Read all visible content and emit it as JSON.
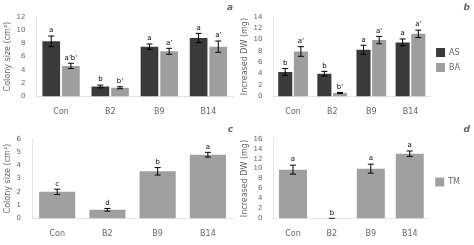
{
  "chart_data": [
    {
      "type": "bar",
      "title": "a",
      "categories": [
        "Con",
        "B2",
        "B9",
        "B14"
      ],
      "series": [
        {
          "color": "#3a3a3a",
          "values": [
            8.3,
            1.5,
            7.5,
            8.8
          ],
          "errors": [
            0.8,
            0.2,
            0.4,
            0.7
          ],
          "annotations": [
            "a",
            "b",
            "a",
            "a"
          ]
        },
        {
          "color": "#9e9e9e",
          "values": [
            4.6,
            1.3,
            6.8,
            7.5
          ],
          "errors": [
            0.4,
            0.15,
            0.45,
            0.85
          ],
          "annotations": [
            "a'b'",
            "b'",
            "a'",
            "a'"
          ]
        }
      ],
      "ylabel": "Colony size (cm²)",
      "ylim": [
        0,
        12.0
      ],
      "yticks": [
        0,
        2,
        4,
        6,
        8,
        10,
        12
      ],
      "grid": false
    },
    {
      "type": "bar",
      "title": "b",
      "categories": [
        "Con",
        "B2",
        "B9",
        "B14"
      ],
      "series": [
        {
          "name": "AS",
          "color": "#3a3a3a",
          "values": [
            4.3,
            4.0,
            8.2,
            9.5
          ],
          "errors": [
            0.6,
            0.4,
            0.8,
            0.6
          ],
          "annotations": [
            "b",
            "b",
            "a",
            "a"
          ]
        },
        {
          "name": "BA",
          "color": "#9e9e9e",
          "values": [
            7.9,
            0.6,
            9.9,
            11.0
          ],
          "errors": [
            0.85,
            0.1,
            0.65,
            0.65
          ],
          "annotations": [
            "a'",
            "b'",
            "a'",
            "a'"
          ]
        }
      ],
      "ylabel": "Increased DW (mg)",
      "ylim": [
        0,
        14.0
      ],
      "yticks": [
        0,
        2,
        4,
        6,
        8,
        10,
        12,
        14
      ],
      "grid": false,
      "legend": "right"
    },
    {
      "type": "bar",
      "title": "c",
      "categories": [
        "Con",
        "B2",
        "B9",
        "B14"
      ],
      "series": [
        {
          "color": "#a0a0a0",
          "values": [
            2.0,
            0.65,
            3.55,
            4.8
          ],
          "errors": [
            0.2,
            0.1,
            0.28,
            0.18
          ],
          "annotations": [
            "c",
            "d",
            "b",
            "a"
          ]
        }
      ],
      "ylabel": "Colony size (cm²)",
      "ylim": [
        0,
        6.0
      ],
      "yticks": [
        0,
        1,
        2,
        3,
        4,
        5,
        6
      ],
      "grid": false
    },
    {
      "type": "bar",
      "title": "d",
      "categories": [
        "Con",
        "B2",
        "B9",
        "B14"
      ],
      "series": [
        {
          "name": "TM",
          "color": "#a0a0a0",
          "values": [
            9.8,
            0.0,
            10.0,
            13.0
          ],
          "errors": [
            0.9,
            0.0,
            0.9,
            0.55
          ],
          "annotations": [
            "a",
            "b",
            "a",
            "a"
          ]
        }
      ],
      "ylabel": "Increased DW (mg)",
      "ylim": [
        0,
        16.0
      ],
      "yticks": [
        0,
        2,
        4,
        6,
        8,
        10,
        12,
        14,
        16
      ],
      "grid": false,
      "legend": "right"
    }
  ]
}
